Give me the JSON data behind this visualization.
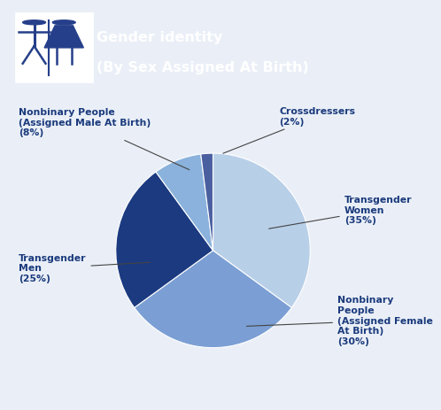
{
  "title_line1": "Gender identity",
  "title_line2": "(By Sex Assigned At Birth)",
  "slices": [
    {
      "label": "Transgender\nWomen\n(35%)",
      "value": 35,
      "color": "#b8cfe8"
    },
    {
      "label": "Nonbinary\nPeople\n(Assigned Female\nAt Birth)\n(30%)",
      "value": 30,
      "color": "#7b9fd4"
    },
    {
      "label": "Transgender\nMen\n(25%)",
      "value": 25,
      "color": "#1b3a80"
    },
    {
      "label": "Nonbinary People\n(Assigned Male At Birth)\n(8%)",
      "value": 8,
      "color": "#8ab2dc"
    },
    {
      "label": "Crossdressers\n(2%)",
      "value": 2,
      "color": "#4a5fa0"
    }
  ],
  "label_color": "#1a3a7c",
  "bg_color": "#eaeff7",
  "header_bg": "#253f8a",
  "header_text_color": "#ffffff",
  "icon_border_color": "#3a56a0",
  "startangle": 90
}
